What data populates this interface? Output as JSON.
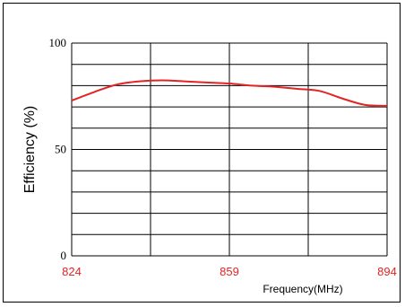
{
  "chart_data": {
    "type": "line",
    "title": "",
    "xlabel": "Frequency(MHz)",
    "ylabel": "Efficiency (%)",
    "xlim": [
      824,
      894
    ],
    "ylim": [
      0,
      100
    ],
    "x_ticks": [
      "824",
      "859",
      "894"
    ],
    "y_ticks": [
      "0",
      "50",
      "100"
    ],
    "grid": true,
    "grid_rows": 10,
    "grid_cols": 4,
    "legend": "none",
    "series": [
      {
        "color": "#e32424",
        "x": [
          824,
          829,
          834,
          839,
          844,
          849,
          854,
          859,
          864,
          869,
          874,
          879,
          884,
          889,
          894
        ],
        "y": [
          73,
          77,
          80.5,
          82,
          82.5,
          82,
          81.5,
          81,
          80,
          79.5,
          78.5,
          77.5,
          74,
          71,
          70.5
        ]
      }
    ]
  }
}
